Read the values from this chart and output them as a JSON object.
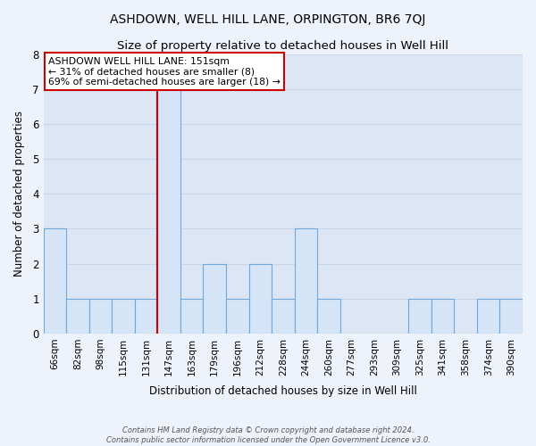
{
  "title": "ASHDOWN, WELL HILL LANE, ORPINGTON, BR6 7QJ",
  "subtitle": "Size of property relative to detached houses in Well Hill",
  "xlabel": "Distribution of detached houses by size in Well Hill",
  "ylabel": "Number of detached properties",
  "bin_labels": [
    "66sqm",
    "82sqm",
    "98sqm",
    "115sqm",
    "131sqm",
    "147sqm",
    "163sqm",
    "179sqm",
    "196sqm",
    "212sqm",
    "228sqm",
    "244sqm",
    "260sqm",
    "277sqm",
    "293sqm",
    "309sqm",
    "325sqm",
    "341sqm",
    "358sqm",
    "374sqm",
    "390sqm"
  ],
  "bar_values": [
    3,
    1,
    1,
    1,
    1,
    7,
    1,
    2,
    1,
    2,
    1,
    3,
    1,
    0,
    0,
    0,
    1,
    1,
    0,
    1,
    1
  ],
  "bar_color": "#d6e4f7",
  "bar_edge_color": "#6fa8dc",
  "marker_index": 5,
  "marker_color": "#cc0000",
  "ylim": [
    0,
    8
  ],
  "yticks": [
    0,
    1,
    2,
    3,
    4,
    5,
    6,
    7,
    8
  ],
  "annotation_text_line1": "ASHDOWN WELL HILL LANE: 151sqm",
  "annotation_text_line2": "← 31% of detached houses are smaller (8)",
  "annotation_text_line3": "69% of semi-detached houses are larger (18) →",
  "footer_line1": "Contains HM Land Registry data © Crown copyright and database right 2024.",
  "footer_line2": "Contains public sector information licensed under the Open Government Licence v3.0.",
  "bg_color": "#eef2fb",
  "plot_bg_color": "#dde6f5",
  "grid_color": "#c8d4e8",
  "annotation_box_color": "white",
  "annotation_edge_color": "#cc0000"
}
